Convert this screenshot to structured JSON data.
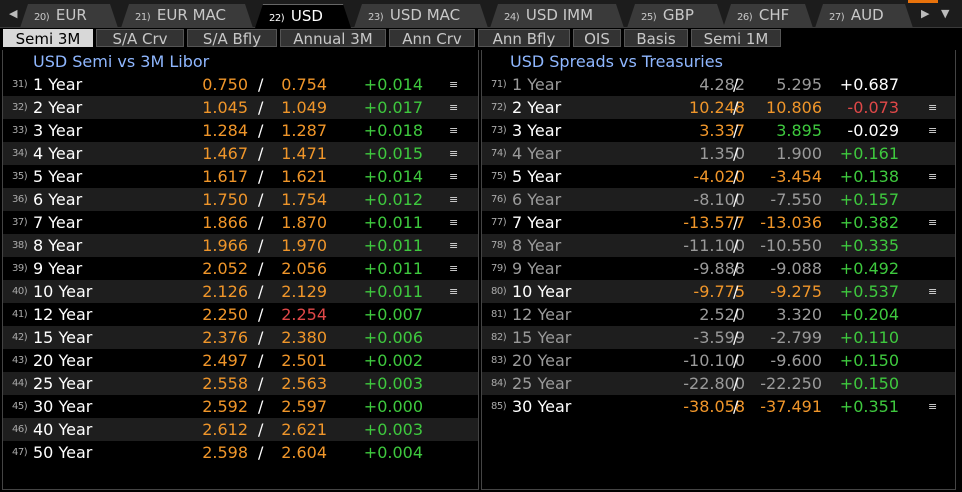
{
  "tabs": [
    {
      "num": "20)",
      "label": "EUR"
    },
    {
      "num": "21)",
      "label": "EUR MAC"
    },
    {
      "num": "22)",
      "label": "USD"
    },
    {
      "num": "23)",
      "label": "USD MAC"
    },
    {
      "num": "24)",
      "label": "USD IMM"
    },
    {
      "num": "25)",
      "label": "GBP"
    },
    {
      "num": "26)",
      "label": "CHF"
    },
    {
      "num": "27)",
      "label": "AUD"
    }
  ],
  "subtabs": [
    "Semi 3M",
    "S/A Crv",
    "S/A Bfly",
    "Annual 3M",
    "Ann Crv",
    "Ann Bfly",
    "OIS",
    "Basis",
    "Semi 1M"
  ],
  "left_panel": {
    "title": "USD Semi vs 3M Libor",
    "rows": [
      {
        "idx": "31)",
        "tenor": "1 Year",
        "bid": "0.750",
        "ask": "0.754",
        "chg": "+0.014"
      },
      {
        "idx": "32)",
        "tenor": "2 Year",
        "bid": "1.045",
        "ask": "1.049",
        "chg": "+0.017"
      },
      {
        "idx": "33)",
        "tenor": "3 Year",
        "bid": "1.284",
        "ask": "1.287",
        "chg": "+0.018"
      },
      {
        "idx": "34)",
        "tenor": "4 Year",
        "bid": "1.467",
        "ask": "1.471",
        "chg": "+0.015"
      },
      {
        "idx": "35)",
        "tenor": "5 Year",
        "bid": "1.617",
        "ask": "1.621",
        "chg": "+0.014"
      },
      {
        "idx": "36)",
        "tenor": "6 Year",
        "bid": "1.750",
        "ask": "1.754",
        "chg": "+0.012"
      },
      {
        "idx": "37)",
        "tenor": "7 Year",
        "bid": "1.866",
        "ask": "1.870",
        "chg": "+0.011"
      },
      {
        "idx": "38)",
        "tenor": "8 Year",
        "bid": "1.966",
        "ask": "1.970",
        "chg": "+0.011"
      },
      {
        "idx": "39)",
        "tenor": "9 Year",
        "bid": "2.052",
        "ask": "2.056",
        "chg": "+0.011"
      },
      {
        "idx": "40)",
        "tenor": "10 Year",
        "bid": "2.126",
        "ask": "2.129",
        "chg": "+0.011"
      },
      {
        "idx": "41)",
        "tenor": "12 Year",
        "bid": "2.250",
        "ask": "2.254",
        "chg": "+0.007"
      },
      {
        "idx": "42)",
        "tenor": "15 Year",
        "bid": "2.376",
        "ask": "2.380",
        "chg": "+0.006"
      },
      {
        "idx": "43)",
        "tenor": "20 Year",
        "bid": "2.497",
        "ask": "2.501",
        "chg": "+0.002"
      },
      {
        "idx": "44)",
        "tenor": "25 Year",
        "bid": "2.558",
        "ask": "2.563",
        "chg": "+0.003"
      },
      {
        "idx": "45)",
        "tenor": "30 Year",
        "bid": "2.592",
        "ask": "2.597",
        "chg": "+0.000"
      },
      {
        "idx": "46)",
        "tenor": "40 Year",
        "bid": "2.612",
        "ask": "2.621",
        "chg": "+0.003"
      },
      {
        "idx": "47)",
        "tenor": "50 Year",
        "bid": "2.598",
        "ask": "2.604",
        "chg": "+0.004"
      }
    ]
  },
  "right_panel": {
    "title": "USD Spreads vs Treasuries",
    "rows": [
      {
        "idx": "71)",
        "tenor": "1 Year",
        "bid": "4.282",
        "ask": "5.295",
        "chg": "+0.687"
      },
      {
        "idx": "72)",
        "tenor": "2 Year",
        "bid": "10.248",
        "ask": "10.806",
        "chg": "-0.073"
      },
      {
        "idx": "73)",
        "tenor": "3 Year",
        "bid": "3.337",
        "ask": "3.895",
        "chg": "-0.029"
      },
      {
        "idx": "74)",
        "tenor": "4 Year",
        "bid": "1.350",
        "ask": "1.900",
        "chg": "+0.161"
      },
      {
        "idx": "75)",
        "tenor": "5 Year",
        "bid": "-4.020",
        "ask": "-3.454",
        "chg": "+0.138"
      },
      {
        "idx": "76)",
        "tenor": "6 Year",
        "bid": "-8.100",
        "ask": "-7.550",
        "chg": "+0.157"
      },
      {
        "idx": "77)",
        "tenor": "7 Year",
        "bid": "-13.577",
        "ask": "-13.036",
        "chg": "+0.382"
      },
      {
        "idx": "78)",
        "tenor": "8 Year",
        "bid": "-11.100",
        "ask": "-10.550",
        "chg": "+0.335"
      },
      {
        "idx": "79)",
        "tenor": "9 Year",
        "bid": "-9.888",
        "ask": "-9.088",
        "chg": "+0.492"
      },
      {
        "idx": "80)",
        "tenor": "10 Year",
        "bid": "-9.775",
        "ask": "-9.275",
        "chg": "+0.537"
      },
      {
        "idx": "81)",
        "tenor": "12 Year",
        "bid": "2.520",
        "ask": "3.320",
        "chg": "+0.204"
      },
      {
        "idx": "82)",
        "tenor": "15 Year",
        "bid": "-3.599",
        "ask": "-2.799",
        "chg": "+0.110"
      },
      {
        "idx": "83)",
        "tenor": "20 Year",
        "bid": "-10.100",
        "ask": "-9.600",
        "chg": "+0.150"
      },
      {
        "idx": "84)",
        "tenor": "25 Year",
        "bid": "-22.800",
        "ask": "-22.250",
        "chg": "+0.150"
      },
      {
        "idx": "85)",
        "tenor": "30 Year",
        "bid": "-38.058",
        "ask": "-37.491",
        "chg": "+0.351"
      }
    ]
  },
  "colors": {
    "accent_orange": "#f0962a",
    "positive_green": "#3ec93e",
    "negative_red": "#e04848",
    "title_blue": "#8fb7ff",
    "inactive_grey": "#9a9a9a"
  }
}
